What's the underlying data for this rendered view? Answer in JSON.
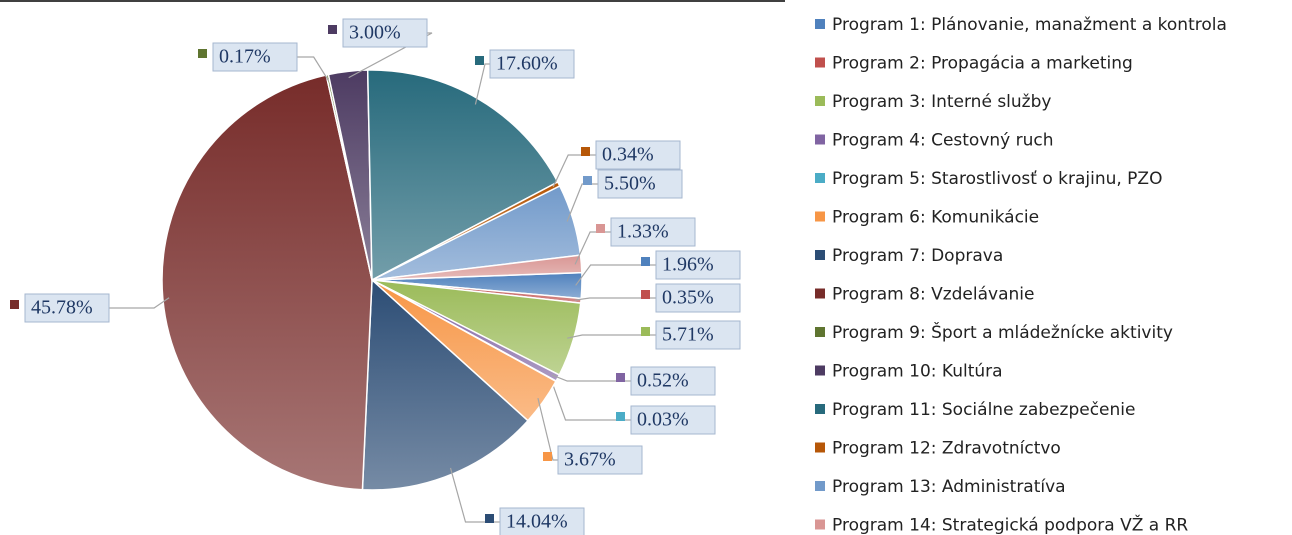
{
  "chart_data": {
    "type": "pie",
    "categories": [
      "Program 1: Plánovanie, manažment  a kontrola",
      "Program 2: Propagácia a marketing",
      "Program 3: Interné služby",
      "Program 4: Cestovný ruch",
      "Program 5: Starostlivosť o krajinu, PZO",
      "Program 6: Komunikácie",
      "Program 7: Doprava",
      "Program 8: Vzdelávanie",
      "Program 9: Šport a mládežnícke aktivity",
      "Program 10: Kultúra",
      "Program 11: Sociálne zabezpečenie",
      "Program 12: Zdravotníctvo",
      "Program 13: Administratíva",
      "Program 14: Strategická podpora VŽ a RR"
    ],
    "values": [
      1.96,
      0.35,
      5.71,
      0.52,
      0.03,
      3.67,
      14.04,
      45.78,
      0.17,
      3.0,
      17.6,
      0.34,
      5.5,
      1.33
    ],
    "value_labels": [
      "1.96%",
      "0.35%",
      "5.71%",
      "0.52%",
      "0.03%",
      "3.67%",
      "14.04%",
      "45.78%",
      "0.17%",
      "3.00%",
      "17.60%",
      "0.34%",
      "5.50%",
      "1.33%"
    ],
    "colors": [
      "#4f81bd",
      "#c0504d",
      "#9bbb59",
      "#8064a2",
      "#4bacc6",
      "#f79646",
      "#2c4d75",
      "#772c2a",
      "#5f7530",
      "#4d3b62",
      "#276a7c",
      "#b65708",
      "#729aca",
      "#d99694"
    ],
    "legend": "right"
  }
}
